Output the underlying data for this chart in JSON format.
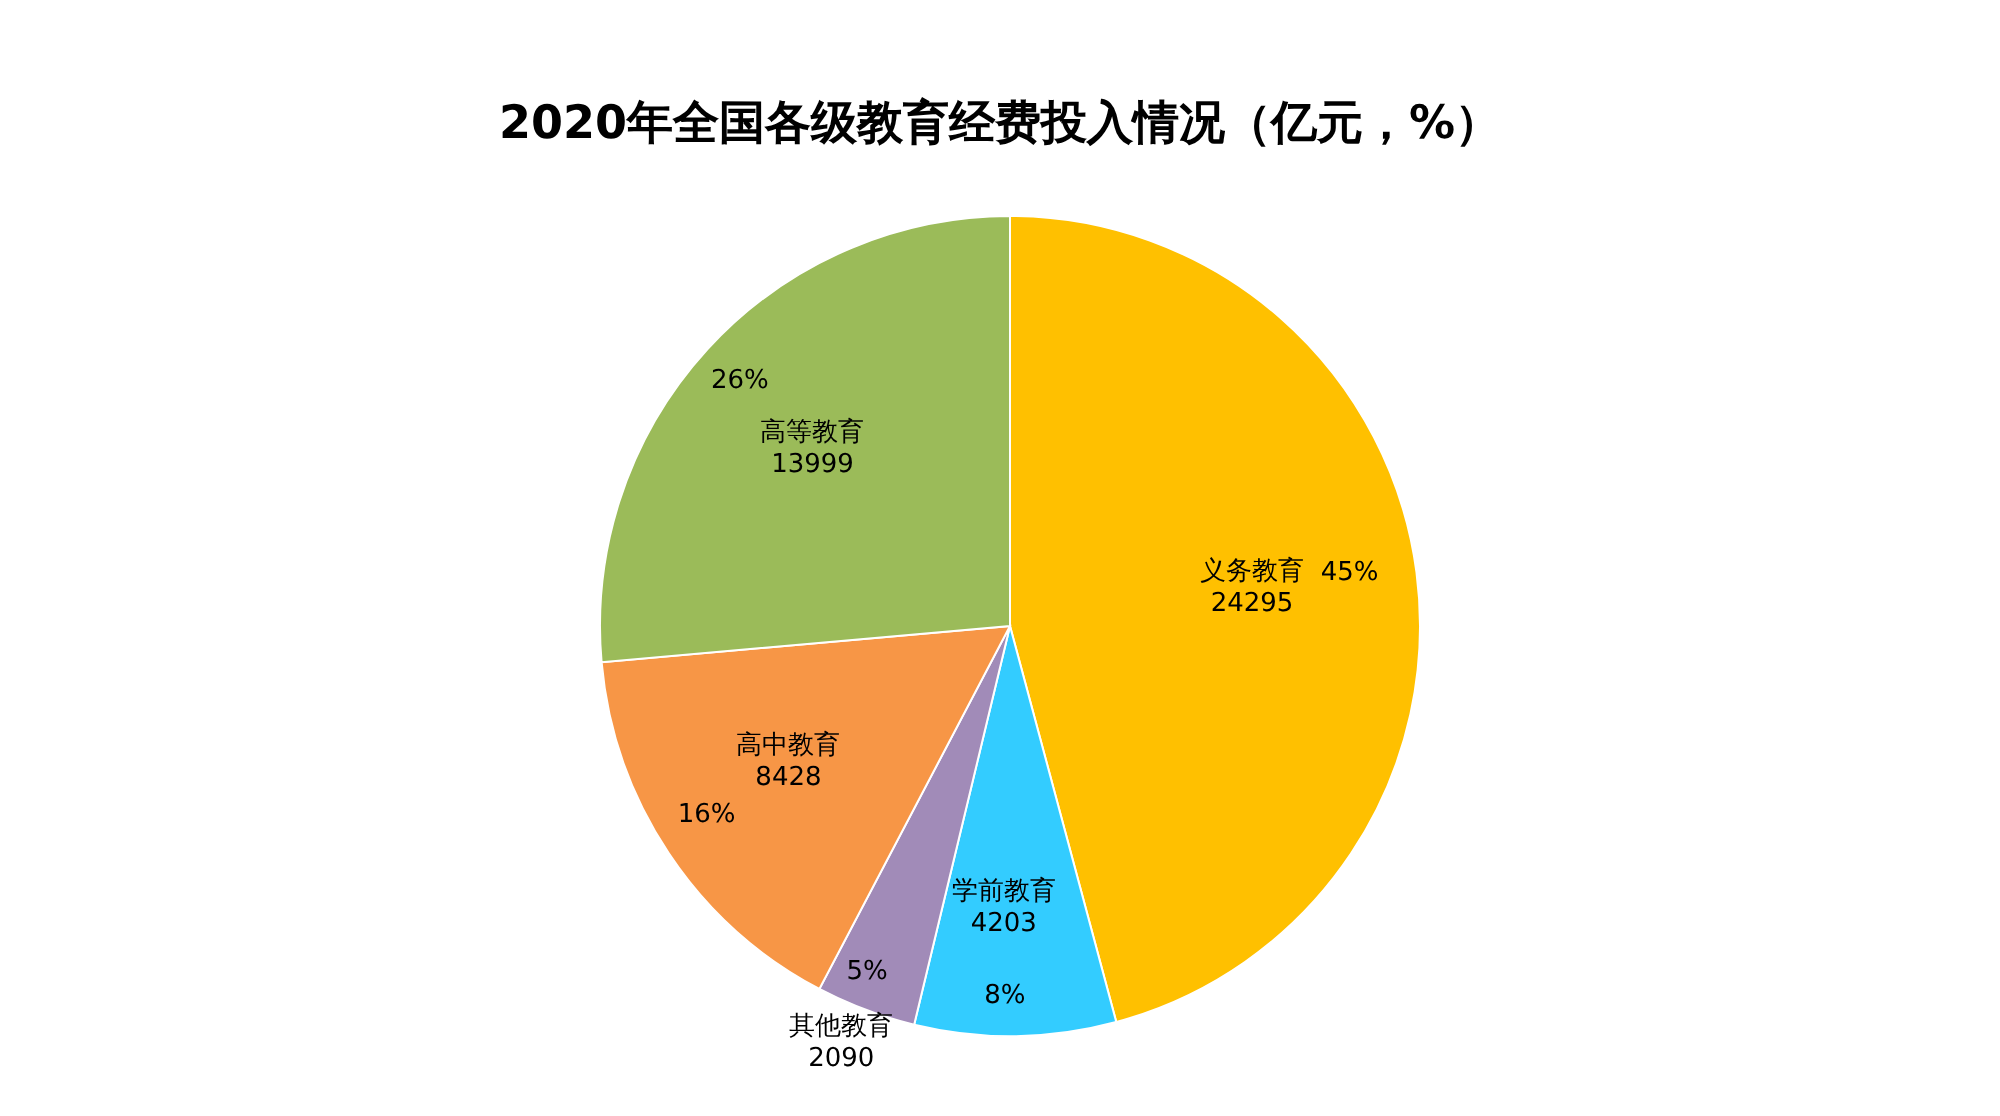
{
  "chart_data": {
    "type": "pie",
    "title": "2020年全国各级教育经费投入情况（亿元，%）",
    "categories": [
      "义务教育",
      "学前教育",
      "其他教育",
      "高中教育",
      "高等教育"
    ],
    "values": [
      24295,
      4203,
      2090,
      8428,
      13999
    ],
    "colors": [
      "#ffc000",
      "#33ccff",
      "#a18bb8",
      "#f79646",
      "#9bbb59"
    ],
    "data_labels": true,
    "annotations": [
      "45%",
      "8%",
      "5%",
      "16%",
      "26%"
    ]
  }
}
